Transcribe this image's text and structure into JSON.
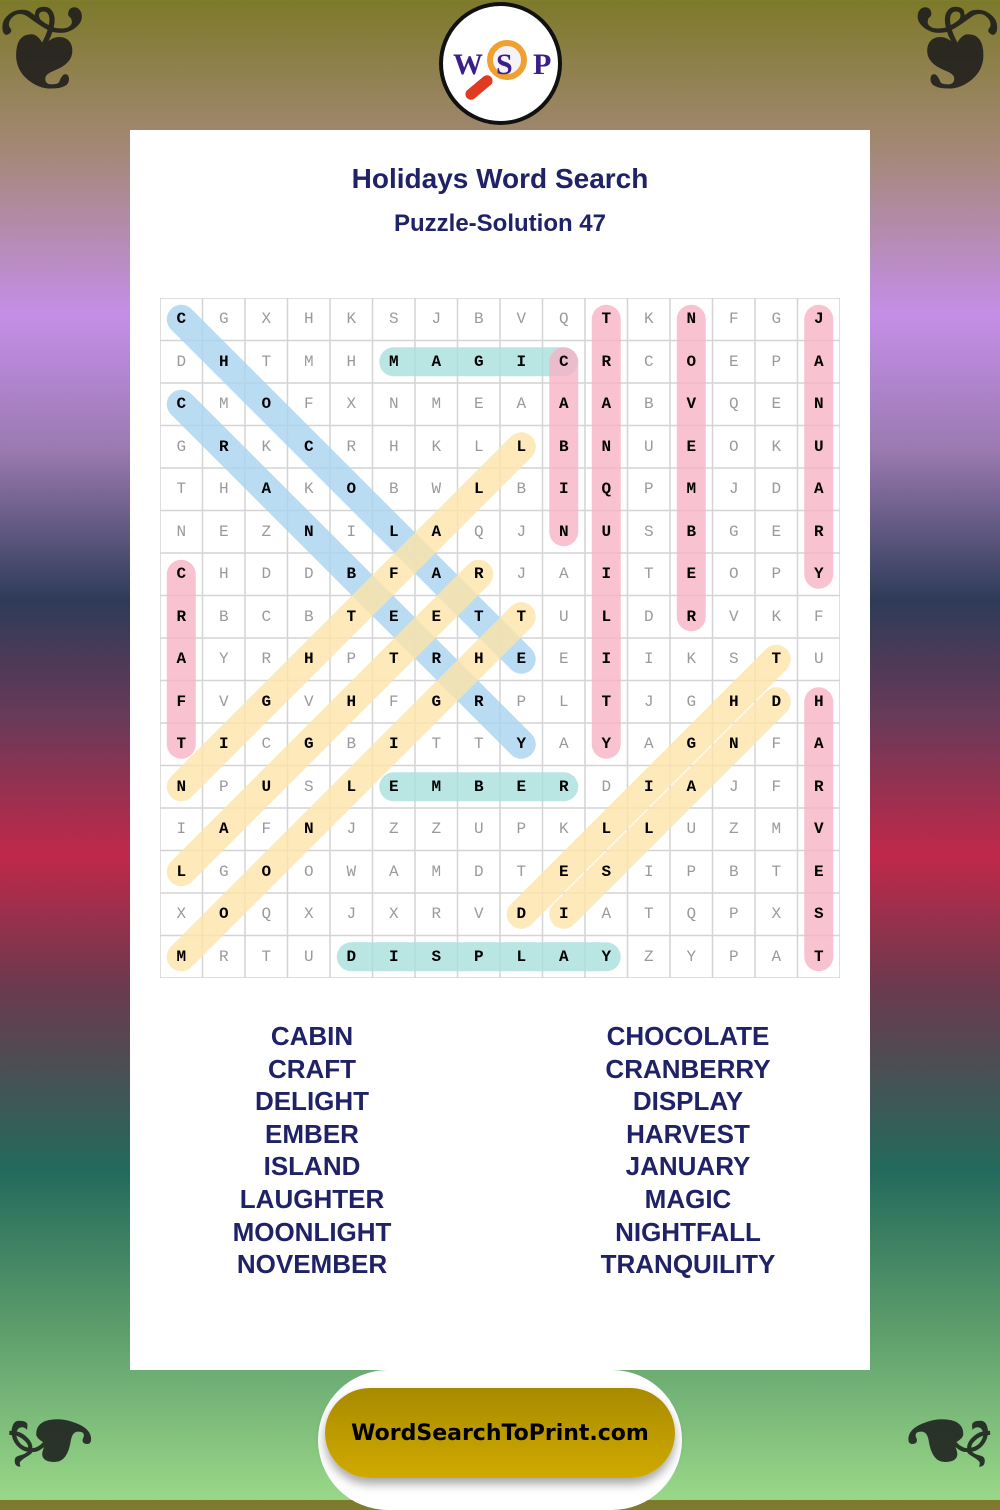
{
  "title": "Holidays Word Search",
  "subtitle": "Puzzle-Solution 47",
  "logo": {
    "letters": [
      "W",
      "S",
      "P"
    ]
  },
  "footer": {
    "site": "WordSearchToPrint.com"
  },
  "colors": {
    "blue": "#a9d3f0",
    "teal": "#a8e0dc",
    "pink": "#f7b3c6",
    "yellow": "#fde4a8",
    "title": "#1f2266"
  },
  "grid": [
    "CGXHKSJBVQTKNFGJ",
    "DHTMHMAGICRCOEPA",
    "CMOFXNMEAAABVQEN",
    "GRKCRHKLLBNUEOKU",
    "THAKOBWLBIQPMJDA",
    "NEZNILAQJNUSBGER",
    "CHDDBFARJAITEOPY",
    "RBCBTEETTULDRVKF",
    "AYRHPTRHEEIIKSTU",
    "FVGVHFGRPLTJGHDH",
    "TICGBITTYAYAGNFA",
    "NPUSLEMBERDIAJFR",
    "IAFNJZZUPKLLUZMV",
    "LGOOWAMDTESIPBTE",
    "XOQXJXRVDIATQPXS",
    "MRTUDISPLAYZYPAT"
  ],
  "solutions": [
    {
      "word": "CHOCOLATE",
      "start": [
        0,
        0
      ],
      "end": [
        8,
        8
      ],
      "color": "blue"
    },
    {
      "word": "CRANBERRY",
      "start": [
        2,
        0
      ],
      "end": [
        10,
        8
      ],
      "color": "blue"
    },
    {
      "word": "MAGIC",
      "start": [
        1,
        5
      ],
      "end": [
        1,
        9
      ],
      "color": "teal"
    },
    {
      "word": "EMBER",
      "start": [
        11,
        5
      ],
      "end": [
        11,
        9
      ],
      "color": "teal"
    },
    {
      "word": "DISPLAY",
      "start": [
        15,
        4
      ],
      "end": [
        15,
        10
      ],
      "color": "teal"
    },
    {
      "word": "CABIN",
      "start": [
        1,
        9
      ],
      "end": [
        5,
        9
      ],
      "color": "pink"
    },
    {
      "word": "TRANQUILITY",
      "start": [
        0,
        10
      ],
      "end": [
        10,
        10
      ],
      "color": "pink"
    },
    {
      "word": "NOVEMBER",
      "start": [
        0,
        12
      ],
      "end": [
        7,
        12
      ],
      "color": "pink"
    },
    {
      "word": "JANUARY",
      "start": [
        0,
        15
      ],
      "end": [
        6,
        15
      ],
      "color": "pink"
    },
    {
      "word": "CRAFT",
      "start": [
        6,
        0
      ],
      "end": [
        10,
        0
      ],
      "color": "pink"
    },
    {
      "word": "HARVEST",
      "start": [
        9,
        15
      ],
      "end": [
        15,
        15
      ],
      "color": "pink"
    },
    {
      "word": "LAUGHTER",
      "start": [
        13,
        0
      ],
      "end": [
        6,
        7
      ],
      "color": "yellow"
    },
    {
      "word": "DELIGHT",
      "start": [
        14,
        8
      ],
      "end": [
        8,
        14
      ],
      "color": "yellow"
    },
    {
      "word": "ISLAND",
      "start": [
        14,
        9
      ],
      "end": [
        9,
        14
      ],
      "color": "yellow"
    },
    {
      "word": "MOONLIGHT",
      "start": [
        15,
        0
      ],
      "end": [
        7,
        8
      ],
      "color": "yellow"
    },
    {
      "word": "NIGHTFALL",
      "start": [
        11,
        0
      ],
      "end": [
        3,
        8
      ],
      "color": "yellow"
    }
  ],
  "word_list": {
    "left": [
      "CABIN",
      "CRAFT",
      "DELIGHT",
      "EMBER",
      "ISLAND",
      "LAUGHTER",
      "MOONLIGHT",
      "NOVEMBER"
    ],
    "right": [
      "CHOCOLATE",
      "CRANBERRY",
      "DISPLAY",
      "HARVEST",
      "JANUARY",
      "MAGIC",
      "NIGHTFALL",
      "TRANQUILITY"
    ]
  }
}
